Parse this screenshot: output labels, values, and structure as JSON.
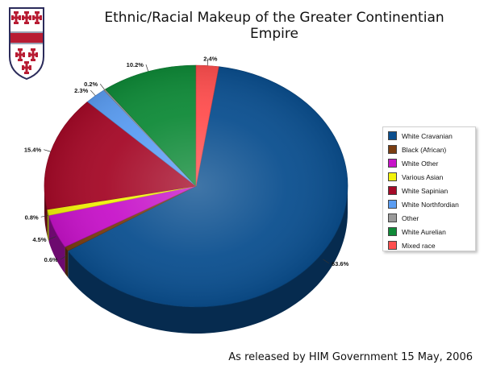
{
  "title": "Ethnic/Racial Makeup of the Greater Continentian Empire",
  "footer": "As released by HIM Government 15 May, 2006",
  "chart_data": {
    "type": "pie",
    "title": "Ethnic/Racial Makeup of the Greater Continentian Empire",
    "legend_position": "right",
    "slices": [
      {
        "label": "White Cravanian",
        "value": 63.6,
        "value_label": "63.6%",
        "color": "#0b4f8f"
      },
      {
        "label": "Black (African)",
        "value": 0.6,
        "value_label": "0.6%",
        "color": "#7a3d10"
      },
      {
        "label": "White Other",
        "value": 4.5,
        "value_label": "4.5%",
        "color": "#c713c9"
      },
      {
        "label": "Various Asian",
        "value": 0.8,
        "value_label": "0.8%",
        "color": "#f2f20a"
      },
      {
        "label": "White Sapinian",
        "value": 15.4,
        "value_label": "15.4%",
        "color": "#a50a28"
      },
      {
        "label": "White Northfordian",
        "value": 2.3,
        "value_label": "2.3%",
        "color": "#5b9df2"
      },
      {
        "label": "Other",
        "value": 0.2,
        "value_label": "0.2%",
        "color": "#9a9a9a"
      },
      {
        "label": "White Aurelian",
        "value": 10.2,
        "value_label": "10.2%",
        "color": "#0f8a38"
      },
      {
        "label": "Mixed race",
        "value": 2.4,
        "value_label": "2.4%",
        "color": "#ff4f4f"
      }
    ]
  },
  "colors": {
    "shield_white": "#ffffff",
    "shield_band": "#b81c33",
    "shield_cross": "#b81c33",
    "shield_border": "#2b2b5a"
  }
}
